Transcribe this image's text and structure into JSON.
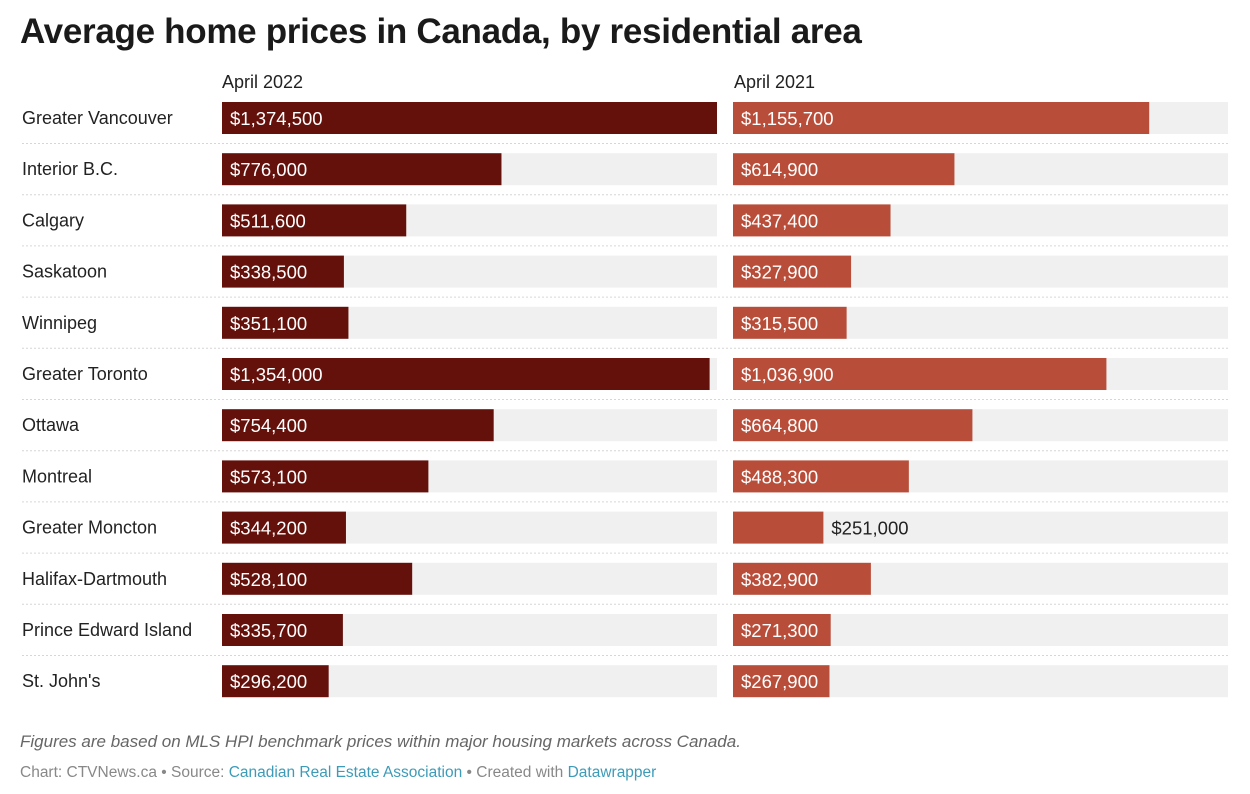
{
  "title": "Average home prices in Canada, by residential area",
  "chart_data": {
    "type": "bar",
    "orientation": "horizontal",
    "categories": [
      "Greater Vancouver",
      "Interior B.C.",
      "Calgary",
      "Saskatoon",
      "Winnipeg",
      "Greater Toronto",
      "Ottawa",
      "Montreal",
      "Greater Moncton",
      "Halifax-Dartmouth",
      "Prince Edward Island",
      "St. John's"
    ],
    "series": [
      {
        "name": "April 2022",
        "color": "#64110b",
        "values": [
          1374500,
          776000,
          511600,
          338500,
          351100,
          1354000,
          754400,
          573100,
          344200,
          528100,
          335700,
          296200
        ],
        "labels": [
          "$1,374,500",
          "$776,000",
          "$511,600",
          "$338,500",
          "$351,100",
          "$1,354,000",
          "$754,400",
          "$573,100",
          "$344,200",
          "$528,100",
          "$335,700",
          "$296,200"
        ]
      },
      {
        "name": "April 2021",
        "color": "#b84e3a",
        "values": [
          1155700,
          614900,
          437400,
          327900,
          315500,
          1036900,
          664800,
          488300,
          251000,
          382900,
          271300,
          267900
        ],
        "labels": [
          "$1,155,700",
          "$614,900",
          "$437,400",
          "$327,900",
          "$315,500",
          "$1,036,900",
          "$664,800",
          "$488,300",
          "$251,000",
          "$382,900",
          "$271,300",
          "$267,900"
        ]
      }
    ],
    "xlim": [
      0,
      1374500
    ],
    "background_track_color": "#f0f0f0",
    "grid": false
  },
  "notes": "Figures are based on MLS HPI benchmark prices within major housing markets across Canada.",
  "credits": {
    "chart_prefix": "Chart: CTVNews.ca • Source: ",
    "source": "Canadian Real Estate Association",
    "middle": " • Created with ",
    "tool": "Datawrapper"
  }
}
